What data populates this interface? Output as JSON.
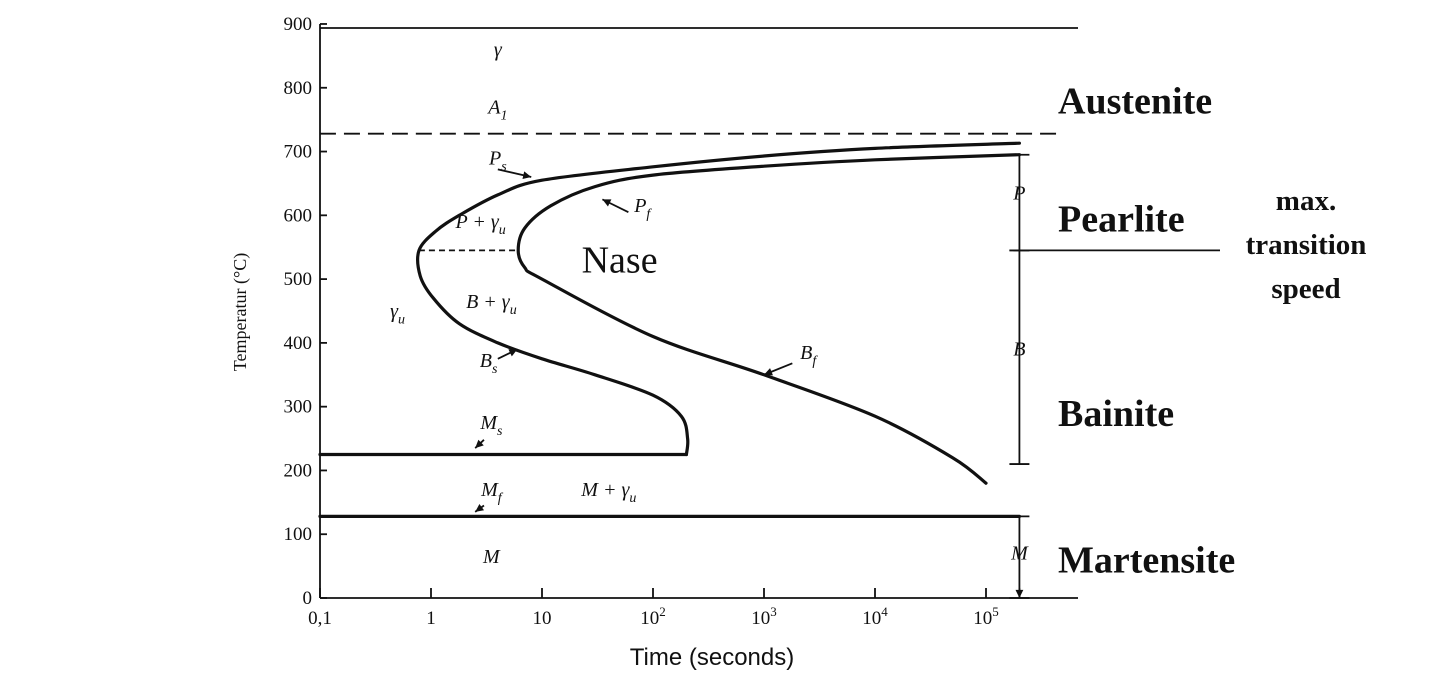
{
  "chart_data": {
    "type": "line",
    "xlabel": "Time (seconds)",
    "ylabel": "Temperatur (°C)",
    "xscale": "log",
    "xlim": [
      0.1,
      500000
    ],
    "ylim": [
      0,
      900
    ],
    "x_ticks": [
      {
        "value": 0.1,
        "base": "0,1",
        "exp": ""
      },
      {
        "value": 1,
        "base": "1",
        "exp": ""
      },
      {
        "value": 10,
        "base": "10",
        "exp": ""
      },
      {
        "value": 100,
        "base": "10",
        "exp": "2"
      },
      {
        "value": 1000,
        "base": "10",
        "exp": "3"
      },
      {
        "value": 10000,
        "base": "10",
        "exp": "4"
      },
      {
        "value": 100000,
        "base": "10",
        "exp": "5"
      }
    ],
    "y_ticks": [
      0,
      100,
      200,
      300,
      400,
      500,
      600,
      700,
      800,
      900
    ],
    "series": [
      {
        "name": "Ps / Bs",
        "style": "solid",
        "points": [
          [
            200000,
            713
          ],
          [
            10000,
            705
          ],
          [
            1000,
            693
          ],
          [
            100,
            676
          ],
          [
            10,
            655
          ],
          [
            4,
            632
          ],
          [
            1.8,
            600
          ],
          [
            1.1,
            575
          ],
          [
            0.78,
            545
          ],
          [
            0.8,
            505
          ],
          [
            1.05,
            470
          ],
          [
            1.8,
            430
          ],
          [
            4,
            400
          ],
          [
            10,
            375
          ],
          [
            30,
            350
          ],
          [
            100,
            318
          ],
          [
            180,
            285
          ],
          [
            205,
            250
          ],
          [
            200,
            225
          ]
        ]
      },
      {
        "name": "Pf / Bf",
        "style": "solid",
        "points": [
          [
            200000,
            695
          ],
          [
            10000,
            687
          ],
          [
            1000,
            677
          ],
          [
            100,
            663
          ],
          [
            30,
            645
          ],
          [
            12,
            615
          ],
          [
            7,
            580
          ],
          [
            6.1,
            545
          ],
          [
            7,
            518
          ],
          [
            10,
            500
          ],
          [
            100,
            410
          ],
          [
            1000,
            350
          ],
          [
            10000,
            285
          ],
          [
            50000,
            220
          ],
          [
            100000,
            180
          ]
        ]
      },
      {
        "name": "Ms",
        "style": "solid",
        "points": [
          [
            0.1,
            225
          ],
          [
            200,
            225
          ]
        ]
      },
      {
        "name": "Mf",
        "style": "solid",
        "points": [
          [
            0.1,
            128
          ],
          [
            200000,
            128
          ]
        ]
      },
      {
        "name": "A1",
        "style": "dashed",
        "points": [
          [
            0.1,
            728
          ],
          [
            500000,
            728
          ]
        ]
      },
      {
        "name": "max. transition speed",
        "style": "dashed",
        "points": [
          [
            0.78,
            545
          ],
          [
            6.1,
            545
          ]
        ]
      }
    ],
    "annotations": [
      {
        "id": "gamma",
        "text": "γ",
        "sub": "",
        "x": 4,
        "y": 850
      },
      {
        "id": "a1",
        "text": "A",
        "sub": "1",
        "x": 4,
        "y": 760
      },
      {
        "id": "ps",
        "text": "P",
        "sub": "s",
        "x": 4,
        "y": 680
      },
      {
        "id": "pf",
        "text": "P",
        "sub": "f",
        "x": 80,
        "y": 605
      },
      {
        "id": "p-gu",
        "text": "P + γ",
        "sub": "u",
        "x": 2.8,
        "y": 580
      },
      {
        "id": "b-gu",
        "text": "B + γ",
        "sub": "u",
        "x": 3.5,
        "y": 455
      },
      {
        "id": "gu",
        "text": "γ",
        "sub": "u",
        "x": 0.5,
        "y": 440
      },
      {
        "id": "bs",
        "text": "B",
        "sub": "s",
        "x": 3.3,
        "y": 362
      },
      {
        "id": "bf",
        "text": "B",
        "sub": "f",
        "x": 2500,
        "y": 375
      },
      {
        "id": "ms",
        "text": "M",
        "sub": "s",
        "x": 3.5,
        "y": 265
      },
      {
        "id": "mf",
        "text": "M",
        "sub": "f",
        "x": 3.5,
        "y": 160
      },
      {
        "id": "m-gu",
        "text": "M + γ",
        "sub": "u",
        "x": 40,
        "y": 160
      },
      {
        "id": "m",
        "text": "M",
        "sub": "",
        "x": 3.5,
        "y": 55
      },
      {
        "id": "range-p",
        "text": "P",
        "sub": "",
        "x": 200000,
        "y": 625
      },
      {
        "id": "range-b",
        "text": "B",
        "sub": "",
        "x": 200000,
        "y": 380
      },
      {
        "id": "range-m",
        "text": "M",
        "sub": "",
        "x": 200000,
        "y": 60
      }
    ],
    "ranges": [
      {
        "label": "P",
        "x": 200000,
        "from": 545,
        "to": 695
      },
      {
        "label": "B",
        "x": 200000,
        "from": 210,
        "to": 545
      },
      {
        "label": "M",
        "x": 200000,
        "from": 0,
        "to": 128
      }
    ],
    "pointers": [
      {
        "from": [
          4,
          672
        ],
        "to": [
          8,
          660
        ]
      },
      {
        "from": [
          60,
          605
        ],
        "to": [
          35,
          625
        ]
      },
      {
        "from": [
          4,
          375
        ],
        "to": [
          6,
          390
        ]
      },
      {
        "from": [
          1800,
          368
        ],
        "to": [
          1000,
          350
        ]
      },
      {
        "from": [
          3,
          248
        ],
        "to": [
          2.5,
          235
        ]
      },
      {
        "from": [
          3,
          145
        ],
        "to": [
          2.5,
          135
        ]
      },
      {
        "from": [
          200000,
          15
        ],
        "to": [
          200000,
          0
        ]
      }
    ],
    "nase": {
      "text": "Nase",
      "x": 50,
      "y": 510
    },
    "phase_labels": [
      {
        "text": "Austenite",
        "y": 780
      },
      {
        "text": "Pearlite",
        "y": 595
      },
      {
        "text": "Bainite",
        "y": 290
      },
      {
        "text": "Martensite",
        "y": 60
      }
    ],
    "transition_label": [
      "max.",
      "transition",
      "speed"
    ]
  }
}
